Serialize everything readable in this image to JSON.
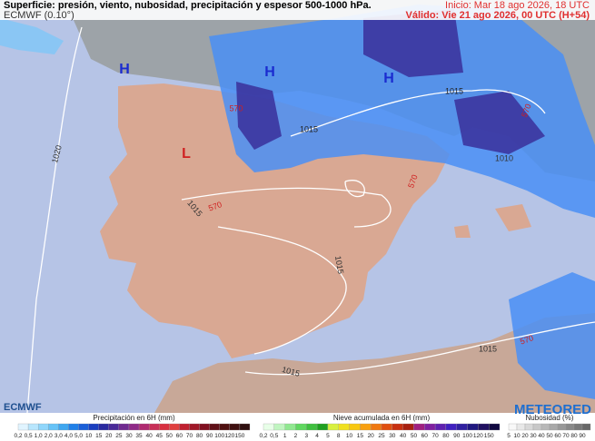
{
  "header": {
    "title": "Superficie: presión, viento, nubosidad, precipitación y espesor 500-1000 hPa.",
    "model": "ECMWF (0.10°)",
    "init": "Inicio: Mar 18 ago 2026, 18 UTC",
    "valid": "Válido: Vie 21 ago 2026, 00 UTC (H+54)"
  },
  "map_labels": [
    "H",
    "H",
    "H",
    "L",
    "1020",
    "1015",
    "1015",
    "1015",
    "1015",
    "1015",
    "1015",
    "1010",
    "570",
    "570",
    "570",
    "570",
    "570"
  ],
  "logos": {
    "left": "ECMWF",
    "right": "METEORED"
  },
  "legends": [
    {
      "title": "Precipitación en 6H (mm)",
      "ticks": [
        "0,2",
        "0,5",
        "1,0",
        "2,0",
        "3,0",
        "4,0",
        "5,0",
        "10",
        "15",
        "20",
        "25",
        "30",
        "35",
        "40",
        "45",
        "50",
        "60",
        "70",
        "80",
        "90",
        "100",
        "120",
        "150"
      ]
    },
    {
      "title": "Nieve acumulada en 6H (mm)",
      "ticks": [
        "0,2",
        "0,5",
        "1",
        "2",
        "3",
        "4",
        "5",
        "8",
        "10",
        "15",
        "20",
        "25",
        "30",
        "40",
        "50",
        "60",
        "70",
        "80",
        "90",
        "100",
        "120",
        "150"
      ]
    },
    {
      "title": "Nubosidad (%)",
      "ticks": [
        "5",
        "10",
        "20",
        "30",
        "40",
        "50",
        "60",
        "70",
        "80",
        "90"
      ]
    }
  ]
}
